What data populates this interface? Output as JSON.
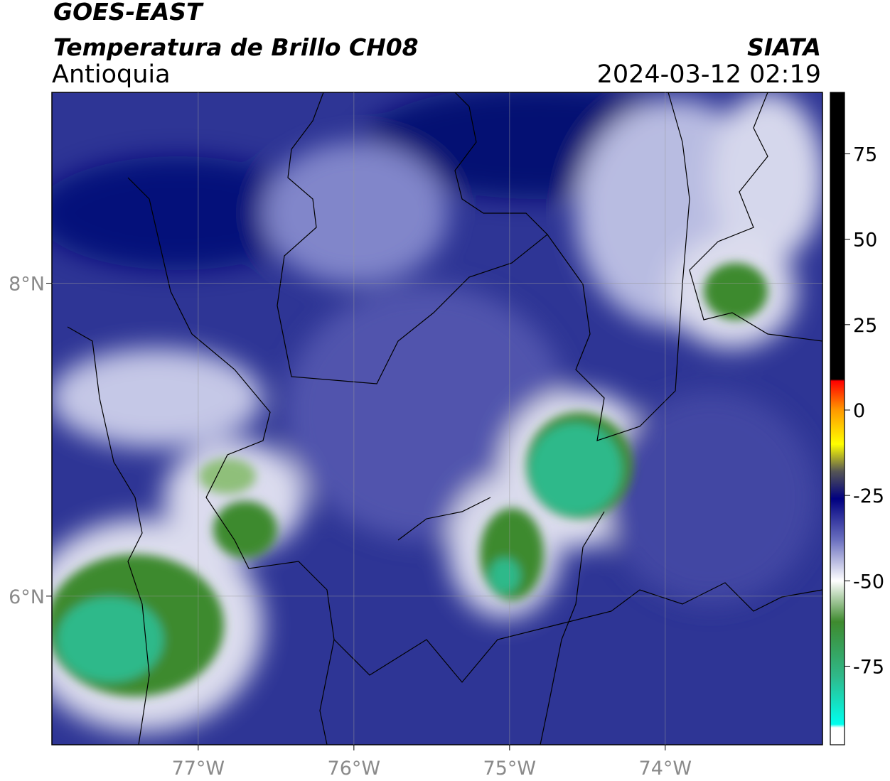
{
  "header": {
    "satellite": "GOES-EAST",
    "product": "Temperatura de Brillo CH08",
    "region": "Antioquia",
    "source": "SIATA",
    "datetime": "2024-03-12 02:19"
  },
  "map": {
    "lonlim": [
      -77.94,
      -72.99
    ],
    "latlim": [
      5.05,
      9.22
    ],
    "lonticks": [
      {
        "value": -77,
        "label": "77°W"
      },
      {
        "value": -76,
        "label": "76°W"
      },
      {
        "value": -75,
        "label": "75°W"
      },
      {
        "value": -74,
        "label": "74°W"
      }
    ],
    "latticks": [
      {
        "value": 6,
        "label": "6°N"
      },
      {
        "value": 8,
        "label": "8°N"
      }
    ],
    "grid": true
  },
  "colorbar": {
    "range": [
      -98,
      93
    ],
    "ticks": [
      -75,
      -50,
      -25,
      0,
      25,
      50,
      75
    ],
    "stops": [
      {
        "value": 93,
        "color": "#000000"
      },
      {
        "value": 9,
        "color": "#000000"
      },
      {
        "value": 8.5,
        "color": "#ff0000"
      },
      {
        "value": 0,
        "color": "#ff9900"
      },
      {
        "value": -10,
        "color": "#ffff00"
      },
      {
        "value": -18,
        "color": "#555555"
      },
      {
        "value": -26,
        "color": "#000080"
      },
      {
        "value": -38,
        "color": "#6a6fbf"
      },
      {
        "value": -50,
        "color": "#ffffff"
      },
      {
        "value": -62,
        "color": "#3e8a2e"
      },
      {
        "value": -78,
        "color": "#2fb98a"
      },
      {
        "value": -92,
        "color": "#00ffee"
      },
      {
        "value": -93,
        "color": "#ffffff"
      },
      {
        "value": -98,
        "color": "#ffffff"
      }
    ]
  }
}
